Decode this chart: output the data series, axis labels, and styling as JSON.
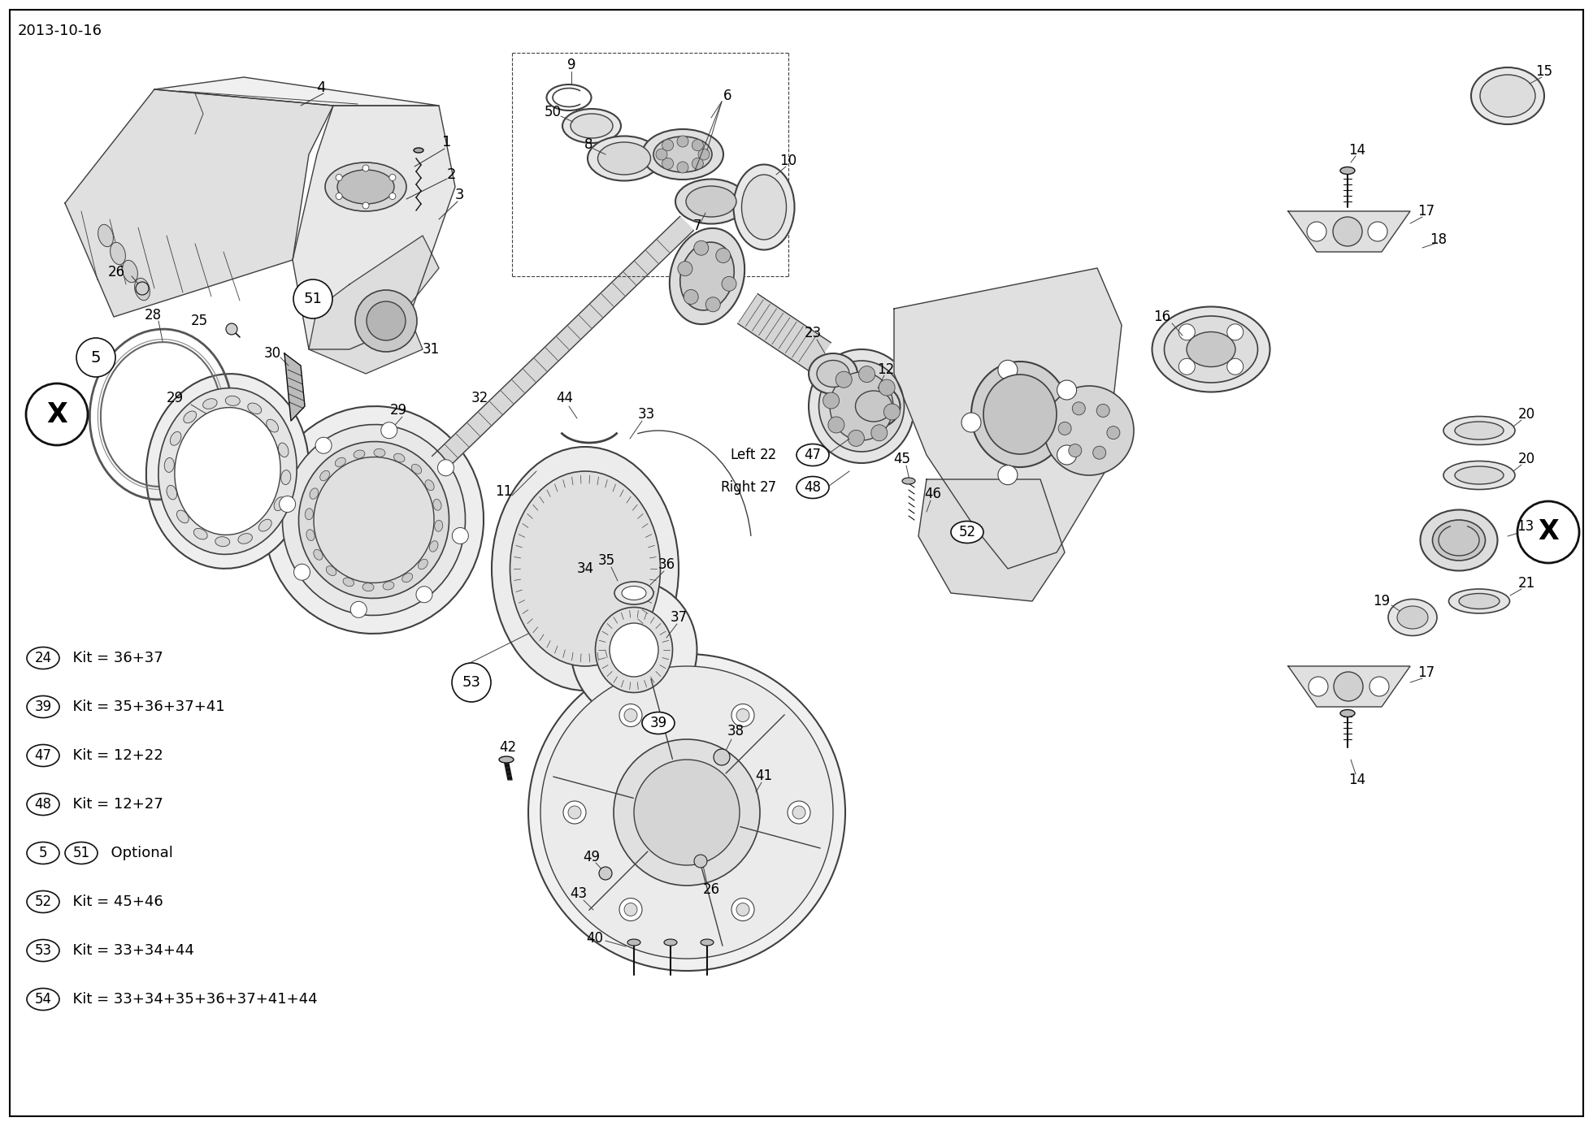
{
  "date_label": "2013-10-16",
  "bg": "#ffffff",
  "lc": "#404040",
  "dc": "#111111",
  "gc": "#888888",
  "figsize": [
    19.6,
    13.86
  ],
  "dpi": 100,
  "legend_items": [
    {
      "num": "24",
      "text": "Kit = 36+37"
    },
    {
      "num": "39",
      "text": "Kit = 35+36+37+41"
    },
    {
      "num": "47",
      "text": "Kit = 12+22"
    },
    {
      "num": "48",
      "text": "Kit = 12+27"
    },
    {
      "num1": "5",
      "num2": "51",
      "text": "Optional"
    },
    {
      "num": "52",
      "text": "Kit = 45+46"
    },
    {
      "num": "53",
      "text": "Kit = 33+34+44"
    },
    {
      "num": "54",
      "text": "Kit = 33+34+35+36+37+41+44"
    }
  ]
}
